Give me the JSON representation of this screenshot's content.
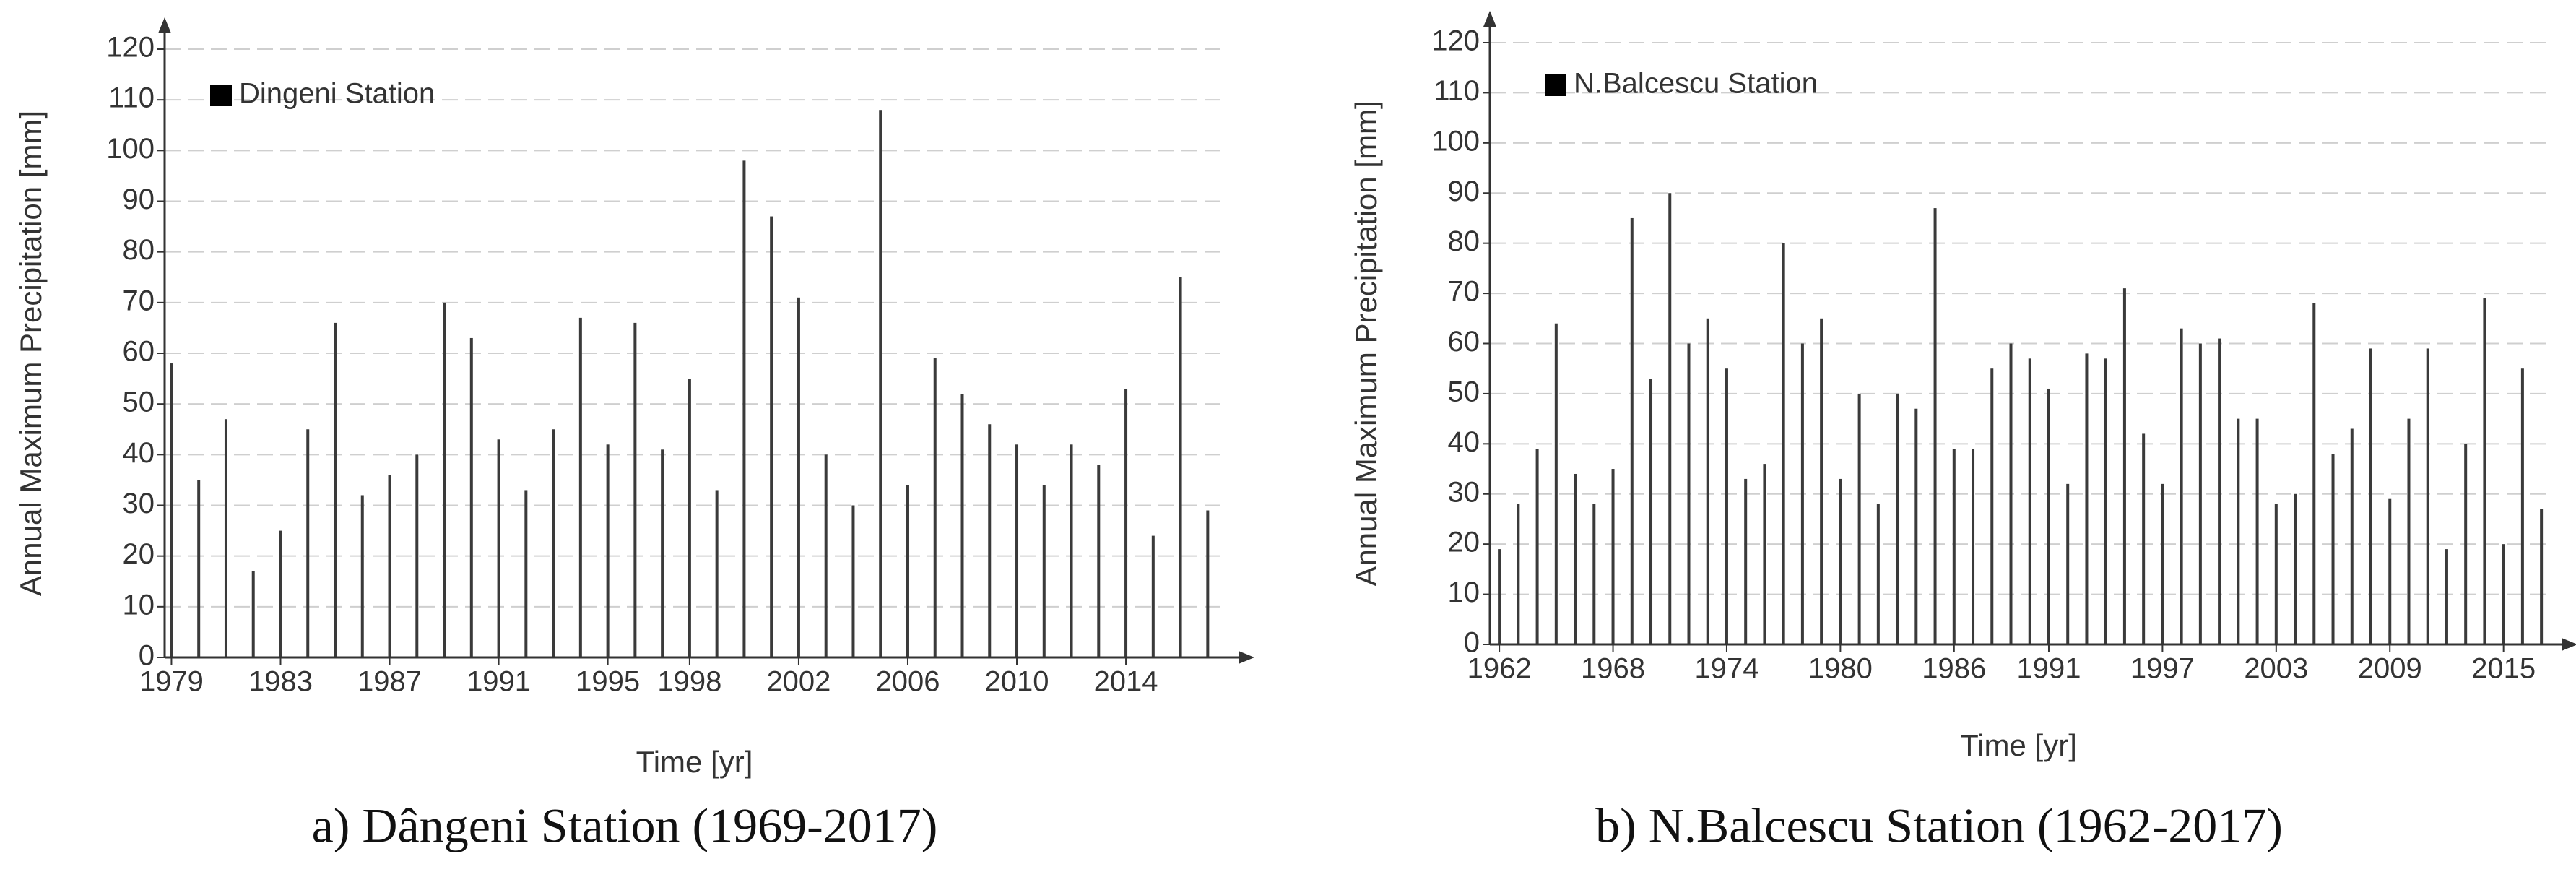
{
  "chart_data": [
    {
      "type": "bar",
      "caption": "a) Dângeni Station (1969-2017)",
      "xlabel": "Time [yr]",
      "ylabel": "Annual Maximum Precipitation [mm]",
      "x": [
        1979,
        1980,
        1981,
        1982,
        1983,
        1984,
        1985,
        1986,
        1987,
        1988,
        1989,
        1990,
        1991,
        1992,
        1993,
        1994,
        1995,
        1996,
        1997,
        1998,
        1999,
        2000,
        2001,
        2002,
        2003,
        2004,
        2005,
        2006,
        2007,
        2008,
        2009,
        2010,
        2011,
        2012,
        2013,
        2014,
        2015,
        2016,
        2017
      ],
      "series": [
        {
          "name": "Dingeni Station",
          "color": "#3a3a3a",
          "values": [
            58,
            35,
            47,
            17,
            25,
            45,
            66,
            32,
            36,
            40,
            70,
            63,
            43,
            33,
            45,
            67,
            42,
            66,
            41,
            55,
            33,
            98,
            87,
            71,
            40,
            30,
            108,
            34,
            59,
            52,
            46,
            42,
            34,
            42,
            38,
            53,
            24,
            75,
            29
          ]
        }
      ],
      "xlim": [
        1978.75,
        2017.6
      ],
      "xticks": [
        1979,
        1983,
        1987,
        1991,
        1995,
        1998,
        2002,
        2006,
        2010,
        2014
      ],
      "ylim": [
        0,
        120
      ],
      "yticks": [
        0,
        10,
        20,
        30,
        40,
        50,
        60,
        70,
        80,
        90,
        100,
        110,
        120
      ],
      "grid": true
    },
    {
      "type": "bar",
      "caption": "b) N.Balcescu Station (1962-2017)",
      "xlabel": "Time [yr]",
      "ylabel": "Annual Maximum Precipitation [mm]",
      "x": [
        1962,
        1963,
        1964,
        1965,
        1966,
        1967,
        1968,
        1969,
        1970,
        1971,
        1972,
        1973,
        1974,
        1975,
        1976,
        1977,
        1978,
        1979,
        1980,
        1981,
        1982,
        1983,
        1984,
        1985,
        1986,
        1987,
        1988,
        1989,
        1990,
        1991,
        1992,
        1993,
        1994,
        1995,
        1996,
        1997,
        1998,
        1999,
        2000,
        2001,
        2002,
        2003,
        2004,
        2005,
        2006,
        2007,
        2008,
        2009,
        2010,
        2011,
        2012,
        2013,
        2014,
        2015,
        2016,
        2017
      ],
      "series": [
        {
          "name": "N.Balcescu Station",
          "color": "#3a3a3a",
          "values": [
            19,
            28,
            39,
            64,
            34,
            28,
            35,
            85,
            53,
            90,
            60,
            65,
            55,
            33,
            36,
            80,
            60,
            65,
            33,
            50,
            28,
            50,
            47,
            87,
            39,
            39,
            55,
            60,
            57,
            51,
            32,
            58,
            57,
            71,
            42,
            32,
            63,
            60,
            61,
            45,
            45,
            28,
            30,
            68,
            38,
            43,
            59,
            29,
            45,
            59,
            19,
            40,
            69,
            20,
            55,
            27
          ]
        }
      ],
      "xlim": [
        1961.5,
        2017.3
      ],
      "xticks": [
        1962,
        1968,
        1974,
        1980,
        1986,
        1991,
        1997,
        2003,
        2009,
        2015
      ],
      "ylim": [
        0,
        120
      ],
      "yticks": [
        0,
        10,
        20,
        30,
        40,
        50,
        60,
        70,
        80,
        90,
        100,
        110,
        120
      ],
      "grid": true
    }
  ]
}
